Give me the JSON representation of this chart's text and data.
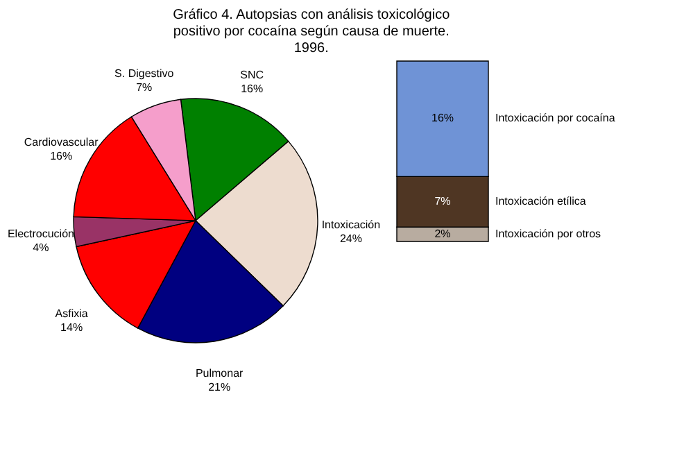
{
  "chart_data": [
    {
      "type": "pie",
      "title": [
        "Gráfico 4. Autopsias con análisis toxicológico",
        "positivo por cocaína según causa de muerte.",
        "1996."
      ],
      "categories": [
        "SNC",
        "Intoxicación",
        "Pulmonar",
        "Asfixia",
        "Electrocución",
        "Cardiovascular",
        "S. Digestivo"
      ],
      "values": [
        16,
        24,
        21,
        14,
        4,
        16,
        7
      ],
      "value_labels": [
        "16%",
        "24%",
        "21%",
        "14%",
        "4%",
        "16%",
        "7%"
      ],
      "colors": [
        "#008000",
        "#eddccf",
        "#000080",
        "#ff0000",
        "#993366",
        "#ff0000",
        "#f59ecb"
      ]
    },
    {
      "type": "bar",
      "stacked": true,
      "categories": [
        null
      ],
      "series": [
        {
          "name": "Intoxicación por otros",
          "color": "#b8aca0",
          "values": [
            2
          ],
          "value_labels": [
            "2%"
          ]
        },
        {
          "name": "Intoxicación etílica",
          "color": "#4f3623",
          "values": [
            7
          ],
          "value_labels": [
            "7%"
          ]
        },
        {
          "name": "Intoxicación por cocaína",
          "color": "#6f93d6",
          "values": [
            16
          ],
          "value_labels": [
            "16%"
          ]
        }
      ]
    }
  ]
}
